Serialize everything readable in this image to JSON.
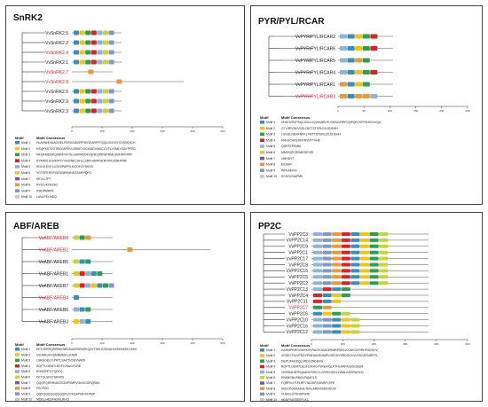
{
  "motif_colors": [
    "#3c8dbc",
    "#f0c419",
    "#2e9e57",
    "#d9222a",
    "#8fb3d9",
    "#c9d33c",
    "#7a5c99",
    "#e89a3c",
    "#7d9bc4",
    "#e6b8d8"
  ],
  "panels": [
    {
      "id": "snrk2",
      "title": "SnRK2",
      "axis_ticks": [
        "0",
        "100",
        "200",
        "300",
        "400",
        "500"
      ],
      "legend_header": [
        "Motif",
        "Motif Consensus"
      ],
      "genes": [
        {
          "name": "VvSnRK2.5",
          "red": false,
          "motifs": [
            1,
            2,
            3,
            4,
            5,
            6,
            9
          ]
        },
        {
          "name": "VvSnRK2.2",
          "red": false,
          "motifs": [
            1,
            2,
            3,
            4,
            5,
            6,
            9
          ]
        },
        {
          "name": "VvSnRK2.4",
          "red": true,
          "motifs": [
            1,
            2,
            3,
            4,
            5,
            6,
            9
          ]
        },
        {
          "name": "VvSnRK2.1",
          "red": false,
          "motifs": [
            1,
            2,
            3,
            4,
            5,
            6,
            9
          ]
        },
        {
          "name": "VvSnRK2.7",
          "red": true,
          "motifs": [
            8
          ]
        },
        {
          "name": "VvSnRK2.8",
          "red": true,
          "motifs": [
            8
          ]
        },
        {
          "name": "VvSnRK2.6",
          "red": false,
          "motifs": [
            1,
            2,
            3,
            4,
            5,
            6,
            9
          ]
        },
        {
          "name": "VvSnRK2.9",
          "red": false,
          "motifs": [
            1,
            2,
            3,
            4,
            5,
            6,
            9
          ]
        },
        {
          "name": "VvSnRK2.3",
          "red": false,
          "motifs": [
            1,
            2,
            3,
            4,
            5,
            6,
            9
          ]
        }
      ],
      "legend": [
        {
          "motif": "Motif 1",
          "consensus": "HLAVIWEVAAGGELFERICNAGRFSEDEARFFFQQLISGVSYCHSMQICH"
        },
        {
          "motif": "Motif 2",
          "consensus": "HSQPKSTVGTPAYIAPEVLSRKEYDGKIADVWSCGVTLYVMLVGAYPFED"
        },
        {
          "motif": "Motif 3",
          "consensus": "MFQKMEKIKQWKIPHVTELSAVRRDIISQNKQREWKRMLSNFHPKRPF"
        },
        {
          "motif": "Motif 4",
          "consensus": "RYAMRLEHVKIPSYVHISNECHHLLSRIFVANPSKRITIPEIKNHPWF"
        },
        {
          "motif": "Motif 5",
          "consensus": "RDLKLENTLLDGSPAPRLKICDFGYSKSS"
        },
        {
          "motif": "Motif 6",
          "consensus": "YGTEFERGPGEGNEKMNSGEARPQFG"
        },
        {
          "motif": "Motif 7",
          "consensus": "KEVLLTPT"
        },
        {
          "motif": "Motif 8",
          "consensus": "RYELVKDIGSG"
        },
        {
          "motif": "Motif 9",
          "consensus": "PSEIPMRPK"
        },
        {
          "motif": "Motif 10",
          "consensus": "LANLPELMDQ"
        }
      ]
    },
    {
      "id": "pyr",
      "title": "PYR/PYL/RCAR",
      "axis_ticks": [
        "0",
        "50",
        "100",
        "150",
        "200",
        "250"
      ],
      "legend_header": [
        "Motif",
        "Motif Consensus"
      ],
      "genes": [
        {
          "name": "VvPYR/PYL/RCAR2",
          "red": false,
          "motifs": [
            5,
            1,
            2,
            3,
            4
          ]
        },
        {
          "name": "VvPYR/PYL/RCAR6",
          "red": false,
          "motifs": [
            5,
            1,
            2,
            3,
            4
          ]
        },
        {
          "name": "VvPYR/PYL/RCAR5",
          "red": false,
          "motifs": [
            5,
            1,
            8,
            3
          ]
        },
        {
          "name": "VvPYR/PYL/RCAR4",
          "red": false,
          "motifs": [
            5,
            1,
            2,
            3,
            4
          ]
        },
        {
          "name": "VvPYR/PYL/RCAR1",
          "red": false,
          "motifs": [
            8,
            1,
            2,
            3
          ]
        },
        {
          "name": "VvPYR/PYL/RCAR3",
          "red": true,
          "motifs": [
            8,
            1,
            8,
            8,
            5
          ]
        }
      ],
      "legend": [
        {
          "motif": "Motif 1",
          "consensus": "HHAHVSVPSQCSSLLVQHIAAPLPLVWSLVRRFDQPQKYKPFIKSCHVQG"
        },
        {
          "motif": "Motif 2",
          "consensus": "GTLREVNVVSGLPATTSTERLDILDDEHH"
        },
        {
          "motif": "Motif 3",
          "consensus": "LSGGLNEHKNKKLFMTTSTERLDILDDEHH"
        },
        {
          "motif": "Motif 4",
          "consensus": "FRKGCHRLRNYRSVTTVHE"
        },
        {
          "motif": "Motif 5",
          "consensus": "QDRTEPEMM"
        },
        {
          "motif": "Motif 6",
          "consensus": "MMGNGCRSMEDEYIR"
        },
        {
          "motif": "Motif 7",
          "consensus": "HMHDYT"
        },
        {
          "motif": "Motif 8",
          "consensus": "EIDGIR"
        },
        {
          "motif": "Motif 9",
          "consensus": "WPEMHVR"
        },
        {
          "motif": "Motif 10",
          "consensus": "SCDGCNAPMK"
        }
      ]
    },
    {
      "id": "abf",
      "title": "ABF/AREB",
      "axis_ticks": [
        "0",
        "100",
        "200",
        "300",
        "400",
        "500"
      ],
      "legend_header": [
        "Motif",
        "Motif Consensus"
      ],
      "genes": [
        {
          "name": "VvABF/AREB8",
          "red": true,
          "motifs": [
            6,
            3,
            8
          ]
        },
        {
          "name": "VvABF/AREB2",
          "red": true,
          "motifs": [
            8
          ]
        },
        {
          "name": "VvABF/AREB5",
          "red": false,
          "motifs": [
            6,
            1,
            3
          ]
        },
        {
          "name": "VvABF/AREB1",
          "red": false,
          "motifs": [
            6,
            4,
            5,
            1,
            3
          ]
        },
        {
          "name": "VvABF/AREB7",
          "red": false,
          "motifs": [
            6,
            4,
            5,
            2,
            1,
            3,
            9
          ]
        },
        {
          "name": "VvABF/AREB4",
          "red": true,
          "motifs": [
            1
          ]
        },
        {
          "name": "VvABF/AREB6",
          "red": false,
          "motifs": [
            5,
            1,
            3
          ]
        },
        {
          "name": "VvABF/AREB3",
          "red": false,
          "motifs": [
            2,
            5,
            1
          ]
        }
      ],
      "legend": [
        {
          "motif": "Motif 1",
          "consensus": "EKTVERRQRRMIKNRESAARSRARKQAYTNELESEVAHLEEENERLKKKK"
        },
        {
          "motif": "Motif 2",
          "consensus": "GDJAKGFGSMNMEELLKNIW"
        },
        {
          "motif": "Motif 3",
          "consensus": "LSRGGELTLPRTLSAKTVDEVWKDI"
        },
        {
          "motif": "Motif 4",
          "consensus": "RQPTLGEMTLEDFLVKAGVVRE"
        },
        {
          "motif": "Motif 5",
          "consensus": "RGSSPFTLTQRFQ"
        },
        {
          "motif": "Motif 6",
          "consensus": "PKTGLSFETSRAPS"
        },
        {
          "motif": "Motif 7",
          "consensus": "QQQPQRRRVAGGGNPVMPVGKGGGRQRNC"
        },
        {
          "motif": "Motif 8",
          "consensus": "FKCPDD"
        },
        {
          "motif": "Motif 9",
          "consensus": "QQPQQQQQQQQQPLFPKQAPIAFSTPMP"
        },
        {
          "motif": "Motif 10",
          "consensus": "MDEL(HEDFHSNLRHCI"
        }
      ]
    },
    {
      "id": "pp2c",
      "title": "PP2C",
      "axis_ticks": [
        "0",
        "100",
        "200",
        "300",
        "400",
        "500"
      ],
      "legend_header": [
        "Motif",
        "Motif Consensus"
      ],
      "genes": [
        {
          "name": "VvPP2C3",
          "red": false,
          "motifs": [
            5,
            9,
            8,
            4,
            1,
            2,
            3,
            6
          ]
        },
        {
          "name": "VvPP2C14",
          "red": false,
          "motifs": [
            5,
            9,
            8,
            4,
            1,
            2,
            3,
            6
          ]
        },
        {
          "name": "VvPP2C9",
          "red": false,
          "motifs": [
            5,
            9,
            8,
            4,
            1,
            2,
            3,
            6
          ]
        },
        {
          "name": "VvPP2C1",
          "red": false,
          "motifs": [
            5,
            9,
            8,
            4,
            1,
            2,
            3,
            6
          ]
        },
        {
          "name": "VvPP2C17",
          "red": false,
          "motifs": [
            5,
            9,
            8,
            4,
            1,
            2,
            3,
            6
          ]
        },
        {
          "name": "VvPP2C8",
          "red": false,
          "motifs": [
            5,
            9,
            8,
            4,
            1,
            2,
            3,
            6
          ]
        },
        {
          "name": "VvPP2C15",
          "red": false,
          "motifs": [
            5,
            9,
            8,
            4,
            1,
            2,
            3,
            6
          ]
        },
        {
          "name": "VvPP2C5",
          "red": false,
          "motifs": [
            5,
            9,
            8,
            4,
            1,
            2,
            3,
            6
          ]
        },
        {
          "name": "VvPP2C2",
          "red": false,
          "motifs": [
            5,
            9,
            8,
            4,
            1,
            2,
            3,
            6
          ]
        },
        {
          "name": "VvPP2C13",
          "red": false,
          "motifs": [
            5,
            4,
            1,
            3
          ]
        },
        {
          "name": "VvPP2C4",
          "red": false,
          "motifs": [
            4,
            1,
            2,
            3
          ]
        },
        {
          "name": "VvPP2C11",
          "red": false,
          "motifs": [
            4,
            1,
            2
          ]
        },
        {
          "name": "VvPP2C7",
          "red": true,
          "motifs": [
            3,
            8
          ]
        },
        {
          "name": "VvPP2C6",
          "red": false,
          "motifs": [
            1,
            2,
            3,
            6
          ]
        },
        {
          "name": "VvPP2C10",
          "red": false,
          "motifs": [
            5,
            9,
            1,
            2,
            6
          ]
        },
        {
          "name": "VvPP2C16",
          "red": false,
          "motifs": [
            5,
            9,
            1,
            2,
            6
          ]
        },
        {
          "name": "VvPP2C12",
          "red": false,
          "motifs": [
            5,
            9,
            1,
            2,
            6
          ]
        }
      ],
      "legend": [
        {
          "motif": "Motif 1",
          "consensus": "HAHMPRRGGWFKSVRALEGAAKERMRPSEILKKIDKGVRRHFHDDVV"
        },
        {
          "motif": "Motif 2",
          "consensus": "VRGEJTSLVPEDYPNIHAIHSVMRVSRGDVSRDGGVVLRKGEFMREPL"
        },
        {
          "motif": "Motif 3",
          "consensus": "DEPLIFAGDQLSRDLENDEHS"
        },
        {
          "motif": "Motif 4",
          "consensus": "RQPTLGEMTLEDFLVKAGVVREHIGLPTHLRAFASSSGSSM"
        },
        {
          "motif": "Motif 5",
          "consensus": "VKRSMLRRPQAANVGRCCLVGRCNGKLYIANLGDSRAHCD"
        },
        {
          "motif": "Motif 6",
          "consensus": "PIWMGNLRMGLPAMGLS"
        },
        {
          "motif": "Motif 7",
          "consensus": "FQRFKLFEPLRPLTAGSPSGNHPLSPE"
        },
        {
          "motif": "Motif 8",
          "consensus": "KIIDCPQAAAKHLTEALAREWSDDISCW"
        },
        {
          "motif": "Motif 9",
          "consensus": "VHAGLSTDHSPSRE"
        },
        {
          "motif": "Motif 10",
          "consensus": "IIKAIFSATEEEFLKL"
        }
      ]
    }
  ]
}
